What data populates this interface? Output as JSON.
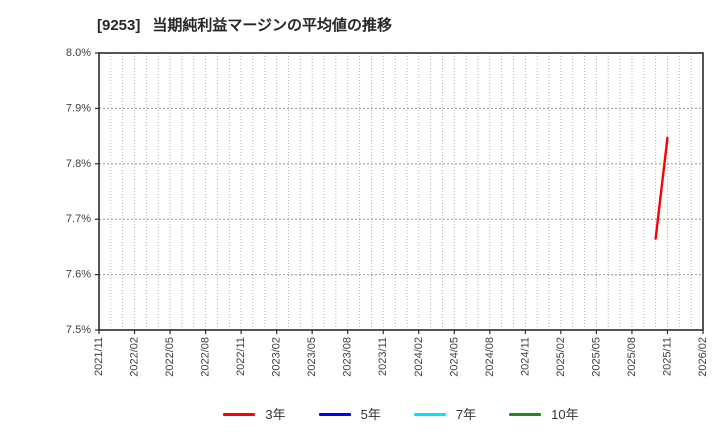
{
  "header": {
    "stock_code": "[9253]",
    "title": "当期純利益マージンの平均値の推移"
  },
  "chart_data": {
    "type": "line",
    "title": "[9253] 当期純利益マージンの平均値の推移",
    "ylabel": "",
    "xlabel": "",
    "ylim": [
      7.5,
      8.0
    ],
    "yticks": [
      {
        "value": 7.5,
        "label": "7.5%"
      },
      {
        "value": 7.6,
        "label": "7.6%"
      },
      {
        "value": 7.7,
        "label": "7.7%"
      },
      {
        "value": 7.8,
        "label": "7.8%"
      },
      {
        "value": 7.9,
        "label": "7.9%"
      },
      {
        "value": 8.0,
        "label": "8.0%"
      }
    ],
    "x_start": "2021/11",
    "x_end": "2026/02",
    "x_minor_grid_interval_months": 1,
    "xtick_labels": [
      "2021/11",
      "2022/02",
      "2022/05",
      "2022/08",
      "2022/11",
      "2023/02",
      "2023/05",
      "2023/08",
      "2023/11",
      "2024/02",
      "2024/05",
      "2024/08",
      "2024/11",
      "2025/02",
      "2025/05",
      "2025/08",
      "2025/11",
      "2026/02"
    ],
    "grid": {
      "vertical_color": "#b0b0b0",
      "horizontal_color": "#9a9a9a",
      "style": "dotted"
    },
    "axis_color": "#2b2b2b",
    "tick_label_color": "#404040",
    "legend_position": "bottom-center",
    "series": [
      {
        "name": "3年",
        "color": "#ff0000",
        "points": [
          {
            "x": "2025/10",
            "y": 7.665
          },
          {
            "x": "2025/11",
            "y": 7.847
          }
        ]
      },
      {
        "name": "5年",
        "color": "#0000ff",
        "points": []
      },
      {
        "name": "7年",
        "color": "#00e5ff",
        "points": []
      },
      {
        "name": "10年",
        "color": "#1f8b1f",
        "points": []
      }
    ]
  }
}
